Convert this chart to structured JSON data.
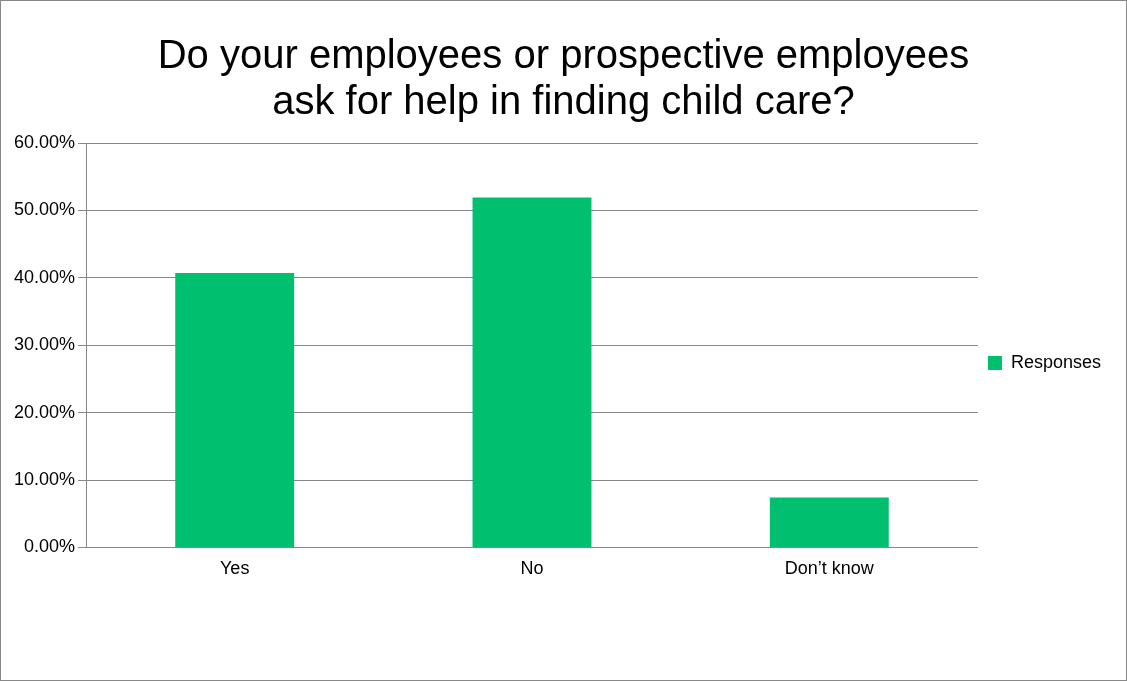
{
  "chart_data": {
    "type": "bar",
    "title": "Do your employees or prospective employees ask for help in finding child care?",
    "categories": [
      "Yes",
      "No",
      "Don’t know"
    ],
    "series": [
      {
        "name": "Responses",
        "color": "#00bf6f",
        "values": [
          40.7,
          51.9,
          7.4
        ]
      }
    ],
    "ylim": [
      0,
      60
    ],
    "yticks": [
      {
        "value": 0,
        "label": "0.00%"
      },
      {
        "value": 10,
        "label": "10.00%"
      },
      {
        "value": 20,
        "label": "20.00%"
      },
      {
        "value": 30,
        "label": "30.00%"
      },
      {
        "value": 40,
        "label": "40.00%"
      },
      {
        "value": 50,
        "label": "50.00%"
      },
      {
        "value": 60,
        "label": "60.00%"
      }
    ],
    "grid": "y",
    "legend": "right"
  }
}
